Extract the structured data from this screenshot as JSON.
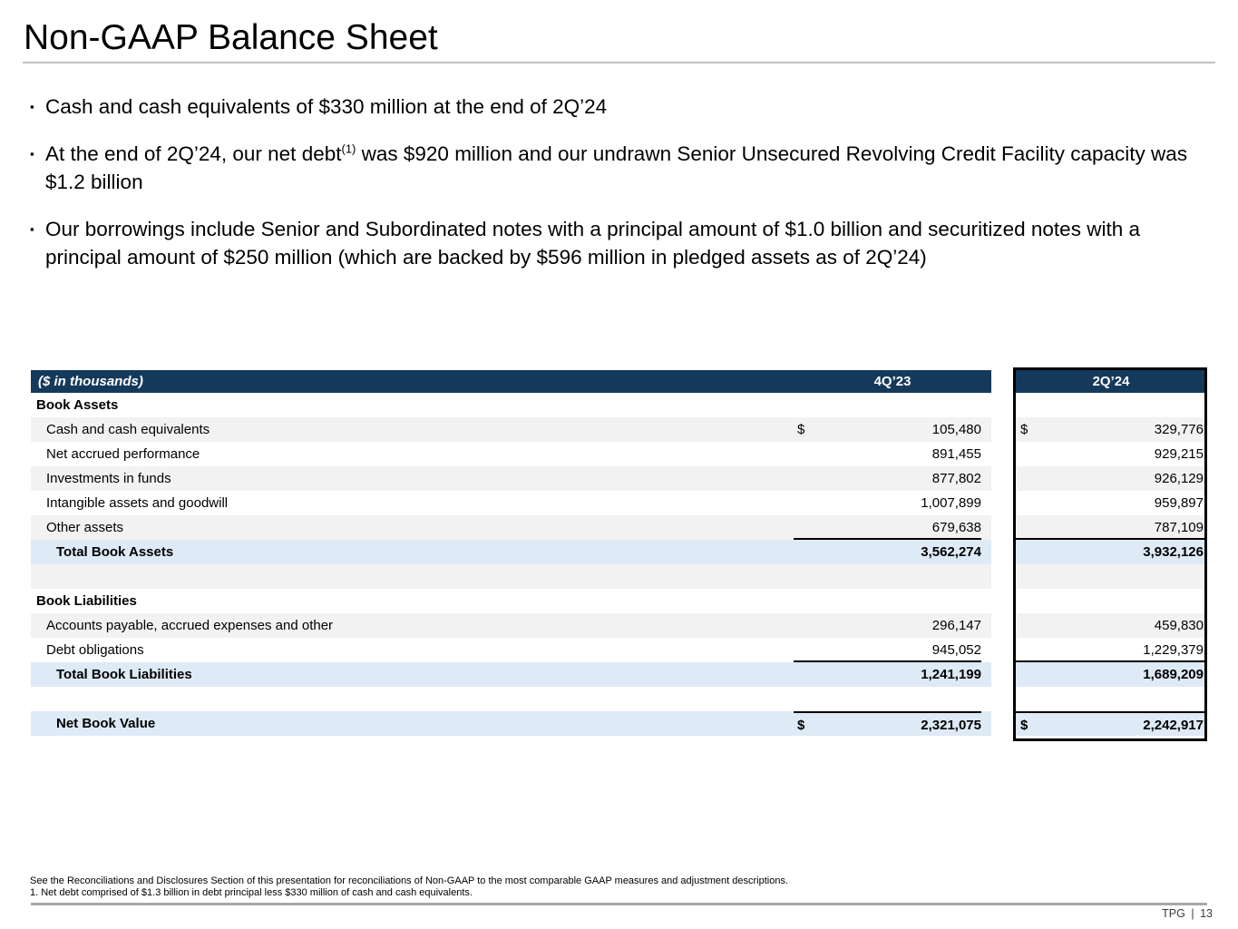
{
  "colors": {
    "header_navy": "#15395b",
    "row_gray": "#f2f2f2",
    "row_blue": "#deeaf6",
    "title_rule_gray": "#bfbfbf",
    "footer_rule_gray": "#a8a8a8",
    "highlight_border": "#000000"
  },
  "header": {
    "title": "Non-GAAP Balance Sheet"
  },
  "bullet_marker": "▪",
  "bullets": [
    {
      "text_before_sup": "Cash and cash equivalents of $330 million at the end of 2Q’24",
      "sup": "",
      "text_after_sup": ""
    },
    {
      "text_before_sup": "At the end of 2Q’24, our net debt",
      "sup": "(1)",
      "text_after_sup": " was $920 million and our undrawn Senior Unsecured Revolving Credit Facility capacity was $1.2 billion"
    },
    {
      "text_before_sup": "Our borrowings include Senior and Subordinated notes with a principal amount of $1.0 billion and securitized notes with a principal amount of $250 million (which are backed by $596 million in pledged assets as of 2Q’24)",
      "sup": "",
      "text_after_sup": ""
    }
  ],
  "table": {
    "unit_label": "($ in thousands)",
    "columns": [
      "4Q’23",
      "2Q’24"
    ],
    "rows": [
      {
        "label": "Book Assets",
        "type": "section",
        "bg": "white"
      },
      {
        "label": "Cash and cash equivalents",
        "type": "item",
        "bg": "gray",
        "dollar1": "$",
        "val1": "105,480",
        "dollar2": "$",
        "val2": "329,776"
      },
      {
        "label": "Net accrued performance",
        "type": "item",
        "bg": "white",
        "val1": "891,455",
        "val2": "929,215"
      },
      {
        "label": "Investments in funds",
        "type": "item",
        "bg": "gray",
        "val1": "877,802",
        "val2": "926,129"
      },
      {
        "label": "Intangible assets and goodwill",
        "type": "item",
        "bg": "white",
        "val1": "1,007,899",
        "val2": "959,897"
      },
      {
        "label": "Other assets",
        "type": "item",
        "bg": "gray",
        "val1": "679,638",
        "val2": "787,109",
        "rule_below": true
      },
      {
        "label": "Total Book Assets",
        "type": "total",
        "bg": "blue",
        "val1": "3,562,274",
        "val2": "3,932,126"
      },
      {
        "label": "",
        "type": "spacer",
        "bg": "gray"
      },
      {
        "label": "Book Liabilities",
        "type": "section",
        "bg": "white"
      },
      {
        "label": "Accounts payable, accrued expenses and other",
        "type": "item",
        "bg": "gray",
        "val1": "296,147",
        "val2": "459,830"
      },
      {
        "label": "Debt obligations",
        "type": "item",
        "bg": "white",
        "val1": "945,052",
        "val2": "1,229,379",
        "rule_below": true
      },
      {
        "label": "Total Book Liabilities",
        "type": "total",
        "bg": "blue",
        "val1": "1,241,199",
        "val2": "1,689,209"
      },
      {
        "label": "",
        "type": "spacer",
        "bg": "white"
      },
      {
        "label": "Net Book Value",
        "type": "total",
        "bg": "blue",
        "dollar1": "$",
        "val1": "2,321,075",
        "dollar2": "$",
        "val2": "2,242,917",
        "rule_above": true
      }
    ]
  },
  "footnotes": [
    "See the Reconciliations and Disclosures Section of this presentation for reconciliations of Non-GAAP to the most comparable GAAP measures and adjustment descriptions.",
    "1. Net debt comprised of $1.3 billion in debt principal less $330 million of cash and cash equivalents."
  ],
  "footer": {
    "brand": "TPG",
    "separator": "|",
    "page_number": "13"
  }
}
